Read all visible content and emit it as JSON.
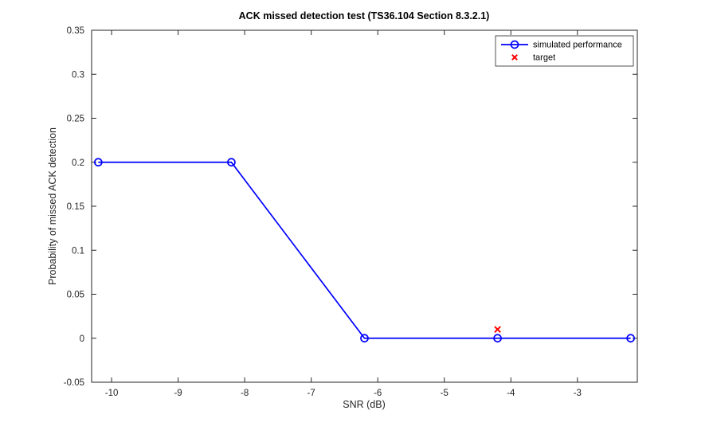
{
  "chart_data": {
    "type": "line",
    "title": "ACK missed detection test (TS36.104 Section 8.3.2.1)",
    "xlabel": "SNR (dB)",
    "ylabel": "Probability of missed ACK detection",
    "xlim": [
      -10.3,
      -2.1
    ],
    "ylim": [
      -0.05,
      0.35
    ],
    "xticks": [
      -10,
      -9,
      -8,
      -7,
      -6,
      -5,
      -4,
      -3
    ],
    "xtick_labels": [
      "-10",
      "-9",
      "-8",
      "-7",
      "-6",
      "-5",
      "-4",
      "-3"
    ],
    "yticks": [
      -0.05,
      0,
      0.05,
      0.1,
      0.15,
      0.2,
      0.25,
      0.3,
      0.35
    ],
    "ytick_labels": [
      "-0.05",
      "0",
      "0.05",
      "0.1",
      "0.15",
      "0.2",
      "0.25",
      "0.3",
      "0.35"
    ],
    "grid": false,
    "legend_position": "top-right",
    "series": [
      {
        "name": "simulated performance",
        "type": "line",
        "marker": "circle",
        "color": "#0000ff",
        "x": [
          -10.2,
          -8.2,
          -6.2,
          -4.2,
          -2.2
        ],
        "y": [
          0.2,
          0.2,
          0,
          0,
          0
        ]
      },
      {
        "name": "target",
        "type": "scatter",
        "marker": "x",
        "color": "#ff0000",
        "x": [
          -4.2
        ],
        "y": [
          0.01
        ]
      }
    ],
    "axis_color": "#262626"
  }
}
